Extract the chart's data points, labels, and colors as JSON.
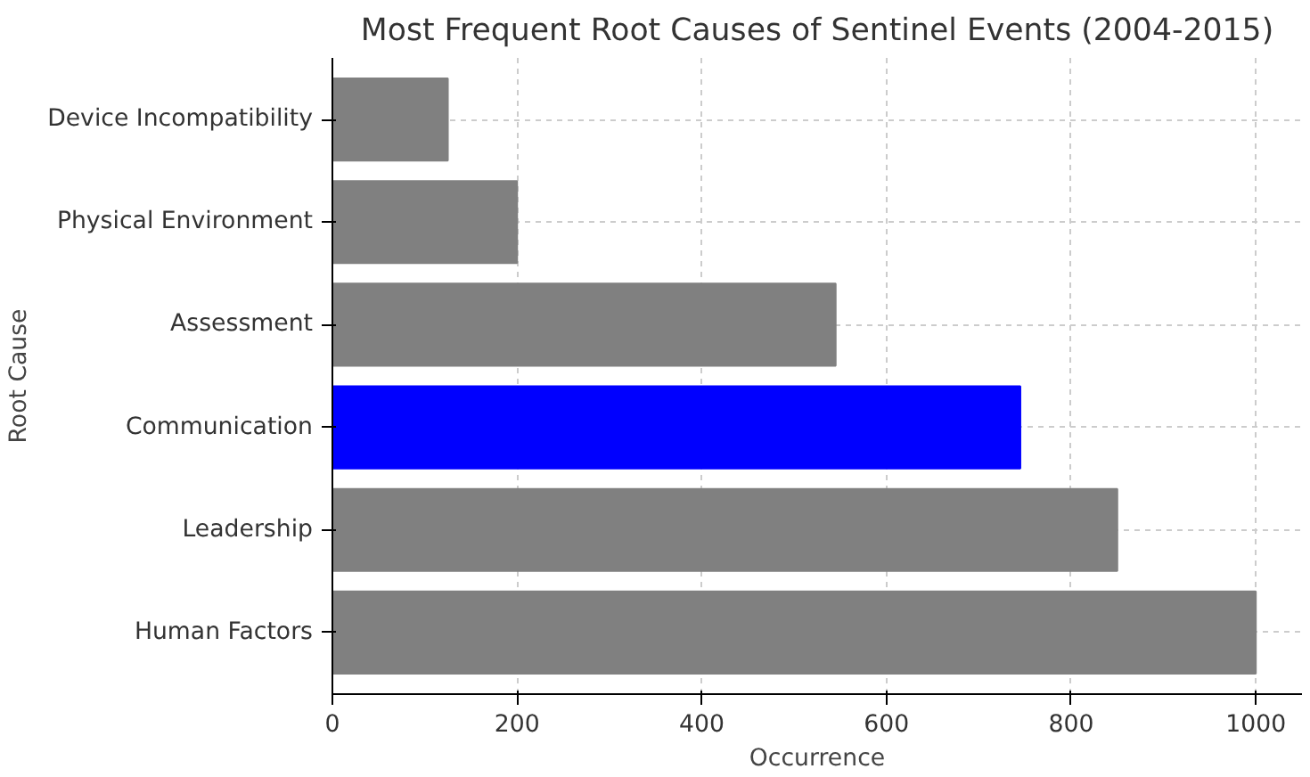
{
  "chart_data": {
    "type": "bar",
    "orientation": "horizontal",
    "title": "Most Frequent Root Causes of Sentinel Events (2004-2015)",
    "xlabel": "Occurrence",
    "ylabel": "Root Cause",
    "categories": [
      "Device Incompatibility",
      "Physical Environment",
      "Assessment",
      "Communication",
      "Leadership",
      "Human Factors"
    ],
    "values": [
      125,
      200,
      545,
      745,
      850,
      1000
    ],
    "colors": [
      "#808080",
      "#808080",
      "#808080",
      "#0000ff",
      "#808080",
      "#808080"
    ],
    "xlim": [
      0,
      1050
    ],
    "xticks": [
      0,
      200,
      400,
      600,
      800,
      1000
    ],
    "grid": true
  }
}
